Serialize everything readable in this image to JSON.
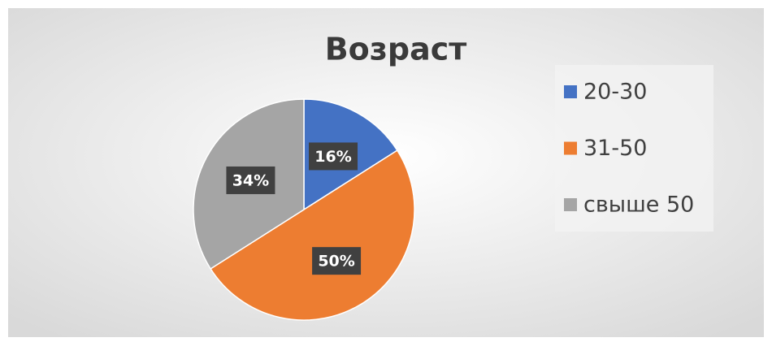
{
  "chart_data": {
    "type": "pie",
    "title": "Возраст",
    "categories": [
      "20-30",
      "31-50",
      "свыше 50"
    ],
    "values": [
      16,
      50,
      34
    ],
    "value_labels": [
      "16%",
      "50%",
      "34%"
    ],
    "colors": [
      "#4472c4",
      "#ed7d31",
      "#a5a5a5"
    ],
    "legend": "right"
  }
}
